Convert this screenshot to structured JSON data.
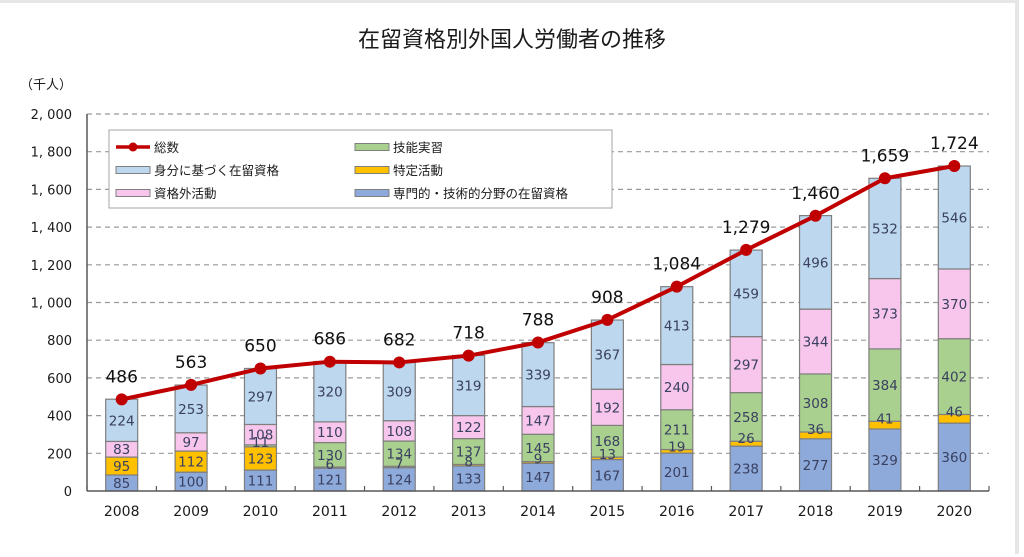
{
  "chart_data": {
    "type": "bar",
    "stacked": true,
    "title": "在留資格別外国人労働者の推移",
    "ylabel": "（千人）",
    "xlabel": "",
    "ylim": [
      0,
      2000
    ],
    "ytick_step": 200,
    "ytick_labels": [
      "0",
      "200",
      "400",
      "600",
      "800",
      "1, 000",
      "1, 200",
      "1, 400",
      "1, 600",
      "1, 800",
      "2, 000"
    ],
    "grid": true,
    "legend_position": "top-left",
    "categories": [
      "2008",
      "2009",
      "2010",
      "2011",
      "2012",
      "2013",
      "2014",
      "2015",
      "2016",
      "2017",
      "2018",
      "2019",
      "2020"
    ],
    "series": [
      {
        "name": "専門的・技術的分野の在留資格",
        "color": "#8eaadb",
        "values": [
          85,
          100,
          111,
          121,
          124,
          133,
          147,
          167,
          201,
          238,
          277,
          329,
          360
        ]
      },
      {
        "name": "特定活動",
        "color": "#ffc000",
        "values": [
          95,
          112,
          123,
          6,
          7,
          8,
          9,
          13,
          19,
          26,
          36,
          41,
          46
        ]
      },
      {
        "name": "技能実習",
        "color": "#a9d08e",
        "values": [
          0,
          0,
          11,
          130,
          134,
          137,
          145,
          168,
          211,
          258,
          308,
          384,
          402
        ]
      },
      {
        "name": "資格外活動",
        "color": "#f8c6ec",
        "values": [
          83,
          97,
          108,
          110,
          108,
          122,
          147,
          192,
          240,
          297,
          344,
          373,
          370
        ]
      },
      {
        "name": "身分に基づく在留資格",
        "color": "#bdd7ee",
        "values": [
          224,
          253,
          297,
          320,
          309,
          319,
          339,
          367,
          413,
          459,
          496,
          532,
          546
        ]
      }
    ],
    "line_series": {
      "name": "総数",
      "color": "#c00000",
      "values": [
        486,
        563,
        650,
        686,
        682,
        718,
        788,
        908,
        1084,
        1279,
        1460,
        1659,
        1724
      ],
      "labels": [
        "486",
        "563",
        "650",
        "686",
        "682",
        "718",
        "788",
        "908",
        "1,084",
        "1,279",
        "1,460",
        "1,659",
        "1,724"
      ]
    },
    "legend_order": [
      {
        "name": "総数",
        "kind": "line"
      },
      {
        "name": "技能実習",
        "kind": "bar"
      },
      {
        "name": "身分に基づく在留資格",
        "kind": "bar"
      },
      {
        "name": "特定活動",
        "kind": "bar"
      },
      {
        "name": "資格外活動",
        "kind": "bar"
      },
      {
        "name": "専門的・技術的分野の在留資格",
        "kind": "bar"
      }
    ]
  }
}
